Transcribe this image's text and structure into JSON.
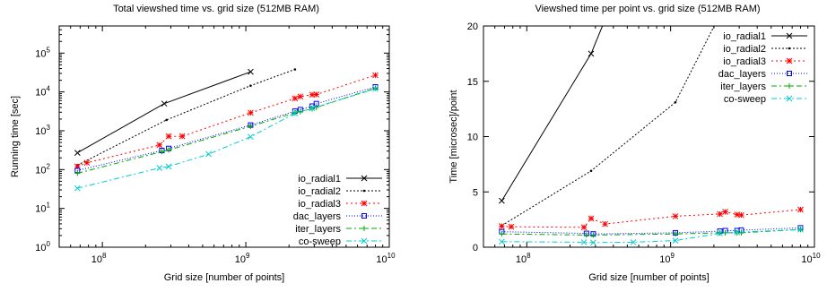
{
  "chart_data": [
    {
      "type": "line",
      "title": "Total viewshed time vs. grid size (512MB RAM)",
      "xlabel": "Grid size [number of points]",
      "ylabel": "Running time [sec]",
      "xscale": "log",
      "yscale": "log",
      "xlim": [
        50000000,
        10000000000
      ],
      "ylim": [
        1,
        500000
      ],
      "xticks": [
        {
          "value": 100000000,
          "base": "10",
          "exp": "8"
        },
        {
          "value": 1000000000,
          "base": "10",
          "exp": "9"
        },
        {
          "value": 10000000000,
          "base": "10",
          "exp": "10"
        }
      ],
      "yticks": [
        {
          "value": 1,
          "base": "10",
          "exp": "0"
        },
        {
          "value": 10,
          "base": "10",
          "exp": "1"
        },
        {
          "value": 100,
          "base": "10",
          "exp": "2"
        },
        {
          "value": 1000,
          "base": "10",
          "exp": "3"
        },
        {
          "value": 10000,
          "base": "10",
          "exp": "4"
        },
        {
          "value": 100000,
          "base": "10",
          "exp": "5"
        }
      ],
      "legend_position": "bottom-right",
      "grid": false,
      "series": [
        {
          "name": "io_radial1",
          "color": "#000000",
          "marker": "x",
          "dash": "",
          "x": [
            67000000,
            270000000,
            1080000000
          ],
          "y": [
            270,
            5000,
            33000
          ]
        },
        {
          "name": "io_radial2",
          "color": "#000000",
          "marker": "dot",
          "dash": "2,2",
          "x": [
            67000000,
            280000000,
            1080000000,
            2200000000
          ],
          "y": [
            130,
            1900,
            14500,
            38000
          ]
        },
        {
          "name": "io_radial3",
          "color": "#ff0000",
          "marker": "star",
          "dash": "2,3",
          "x": [
            67000000,
            78000000,
            250000000,
            290000000,
            360000000,
            1080000000,
            2200000000,
            2400000000,
            2900000000,
            3100000000,
            8000000000
          ],
          "y": [
            120,
            150,
            430,
            720,
            720,
            2900,
            6800,
            7600,
            8500,
            8600,
            27000
          ]
        },
        {
          "name": "dac_layers",
          "color": "#0000ff",
          "marker": "square",
          "dash": "1,2",
          "x": [
            67000000,
            260000000,
            290000000,
            1080000000,
            2200000000,
            2400000000,
            2900000000,
            3100000000,
            8000000000
          ],
          "y": [
            95,
            310,
            350,
            1400,
            3200,
            3500,
            4300,
            5000,
            13500
          ]
        },
        {
          "name": "iter_layers",
          "color": "#00aa00",
          "marker": "plus",
          "dash": "6,3,2,3",
          "x": [
            67000000,
            260000000,
            290000000,
            1080000000,
            2200000000,
            2400000000,
            2900000000,
            3100000000,
            8000000000
          ],
          "y": [
            80,
            290,
            320,
            1300,
            2900,
            3100,
            3700,
            4000,
            12500
          ]
        },
        {
          "name": "co-sweep",
          "color": "#00cccc",
          "marker": "x",
          "dash": "6,3,2,3",
          "x": [
            67000000,
            250000000,
            290000000,
            550000000,
            1080000000,
            2200000000,
            2900000000,
            8000000000
          ],
          "y": [
            33,
            110,
            120,
            250,
            700,
            2800,
            3800,
            12000
          ]
        }
      ]
    },
    {
      "type": "line",
      "title": "Viewshed time per point vs. grid size (512MB RAM)",
      "xlabel": "Grid size [number of points]",
      "ylabel": "Time [microsec]/point",
      "xscale": "log",
      "yscale": "linear",
      "xlim": [
        50000000,
        10000000000
      ],
      "ylim": [
        0,
        20
      ],
      "xticks": [
        {
          "value": 100000000,
          "base": "10",
          "exp": "8"
        },
        {
          "value": 1000000000,
          "base": "10",
          "exp": "9"
        },
        {
          "value": 10000000000,
          "base": "10",
          "exp": "10"
        }
      ],
      "yticks": [
        {
          "value": 0,
          "label": "0"
        },
        {
          "value": 5,
          "label": "5"
        },
        {
          "value": 10,
          "label": "10"
        },
        {
          "value": 15,
          "label": "15"
        },
        {
          "value": 20,
          "label": "20"
        }
      ],
      "legend_position": "top-right",
      "grid": false,
      "series": [
        {
          "name": "io_radial1",
          "color": "#000000",
          "marker": "x",
          "dash": "",
          "x": [
            67000000,
            280000000,
            600000000
          ],
          "y": [
            4.2,
            17.5,
            28
          ]
        },
        {
          "name": "io_radial2",
          "color": "#000000",
          "marker": "dot",
          "dash": "2,2",
          "x": [
            67000000,
            280000000,
            1080000000,
            2200000000
          ],
          "y": [
            1.95,
            6.9,
            13.1,
            21
          ]
        },
        {
          "name": "io_radial3",
          "color": "#ff0000",
          "marker": "star",
          "dash": "2,3",
          "x": [
            67000000,
            78000000,
            250000000,
            280000000,
            350000000,
            1080000000,
            2200000000,
            2400000000,
            2900000000,
            3100000000,
            8000000000
          ],
          "y": [
            1.9,
            1.85,
            1.8,
            2.6,
            2.1,
            2.8,
            3.0,
            3.2,
            2.95,
            2.9,
            3.4
          ]
        },
        {
          "name": "dac_layers",
          "color": "#0000ff",
          "marker": "square",
          "dash": "1,2",
          "x": [
            67000000,
            260000000,
            290000000,
            1080000000,
            2200000000,
            2400000000,
            2900000000,
            3100000000,
            8000000000
          ],
          "y": [
            1.4,
            1.25,
            1.2,
            1.3,
            1.45,
            1.5,
            1.5,
            1.55,
            1.75
          ]
        },
        {
          "name": "iter_layers",
          "color": "#00aa00",
          "marker": "plus",
          "dash": "6,3,2,3",
          "x": [
            67000000,
            260000000,
            290000000,
            1080000000,
            2200000000,
            2400000000,
            2900000000,
            3100000000,
            8000000000
          ],
          "y": [
            1.2,
            1.1,
            1.1,
            1.2,
            1.3,
            1.3,
            1.3,
            1.3,
            1.6
          ]
        },
        {
          "name": "co-sweep",
          "color": "#00cccc",
          "marker": "x",
          "dash": "6,3,2,3",
          "x": [
            67000000,
            250000000,
            290000000,
            550000000,
            1080000000,
            2200000000,
            2900000000,
            8000000000
          ],
          "y": [
            0.5,
            0.45,
            0.42,
            0.45,
            0.6,
            1.25,
            1.35,
            1.6
          ]
        }
      ]
    }
  ]
}
